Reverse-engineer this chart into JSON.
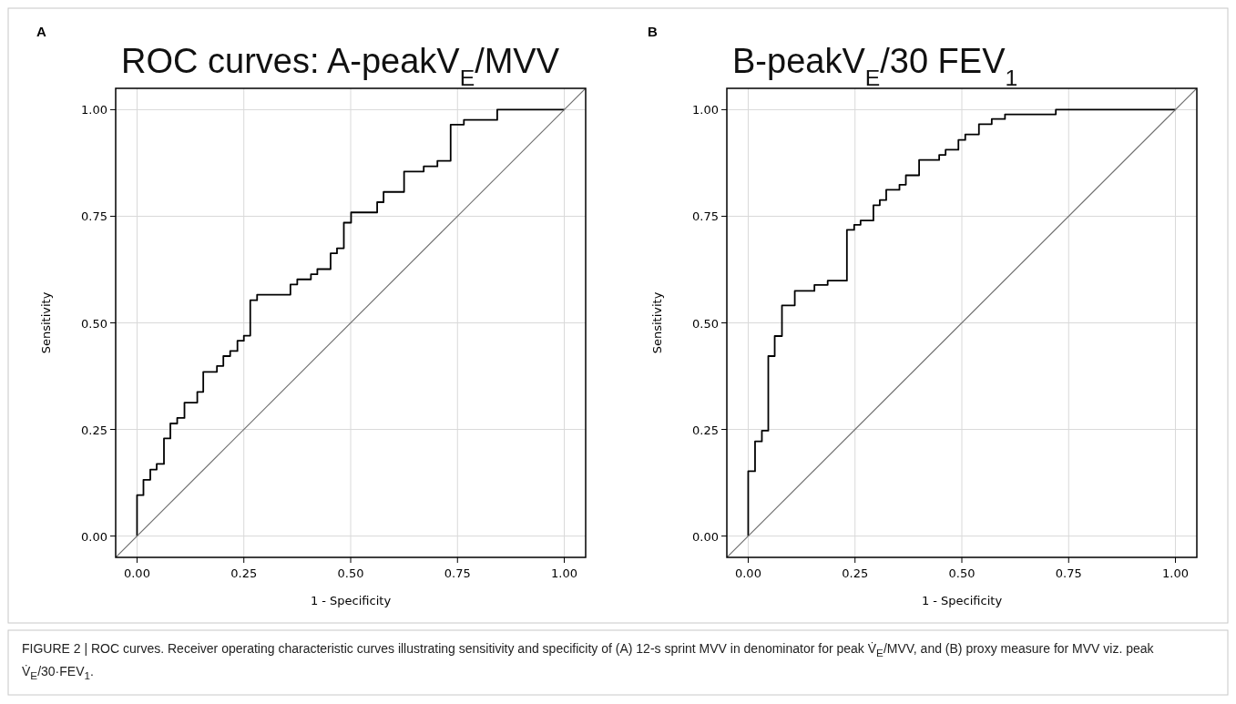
{
  "chart_data": [
    {
      "type": "step",
      "title": "ROC curves: A-peakV$_{E}$/MVV",
      "xlabel": "1 - Specificity",
      "ylabel": "Sensitivity",
      "xlim": [
        -0.05,
        1.05
      ],
      "ylim": [
        -0.05,
        1.05
      ],
      "xticks": [
        {
          "value": 0,
          "label": "0.00"
        },
        {
          "value": 0.25,
          "label": "0.25"
        },
        {
          "value": 0.5,
          "label": "0.50"
        },
        {
          "value": 0.75,
          "label": "0.75"
        },
        {
          "value": 1,
          "label": "1.00"
        }
      ],
      "yticks": [
        {
          "value": 0,
          "label": "0.00"
        },
        {
          "value": 0.25,
          "label": "0.25"
        },
        {
          "value": 0.5,
          "label": "0.50"
        },
        {
          "value": 0.75,
          "label": "0.75"
        },
        {
          "value": 1,
          "label": "1.00"
        }
      ],
      "grid": true,
      "annotations": [
        "A",
        "FIGURE 2 | ROC curves. Receiver operating characteristic curves illustrating sensitivity and specificity of (A) 12-s sprint MVV in denominator for peak V̇$_{E}$/MVV, and (B) proxy measure for MVV viz. peak V̇$_{E}$/30·FEV$_{1}$."
      ],
      "series": [
        {
          "color": "#000000",
          "x": [
            0,
            0,
            0.015,
            0.031,
            0.046,
            0.063,
            0.078,
            0.094,
            0.111,
            0.141,
            0.155,
            0.187,
            0.202,
            0.218,
            0.235,
            0.25,
            0.265,
            0.281,
            0.359,
            0.375,
            0.407,
            0.422,
            0.453,
            0.468,
            0.484,
            0.501,
            0.562,
            0.577,
            0.625,
            0.671,
            0.703,
            0.734,
            0.765,
            0.843,
            1
          ],
          "values": [
            0,
            0.096,
            0.132,
            0.156,
            0.169,
            0.229,
            0.264,
            0.277,
            0.313,
            0.338,
            0.385,
            0.399,
            0.422,
            0.434,
            0.458,
            0.47,
            0.553,
            0.566,
            0.59,
            0.602,
            0.614,
            0.626,
            0.663,
            0.675,
            0.735,
            0.759,
            0.783,
            0.807,
            0.855,
            0.867,
            0.88,
            0.965,
            0.976,
            1,
            1
          ]
        },
        {
          "type": "line",
          "color": "#707070",
          "x": [
            -0.05,
            1.05
          ],
          "values": [
            -0.05,
            1.05
          ]
        }
      ]
    },
    {
      "type": "step",
      "title": "B-peakV$_{E}$/30 FEV$_{1}$",
      "xlabel": "1 - Specificity",
      "ylabel": "Sensitivity",
      "xlim": [
        -0.05,
        1.05
      ],
      "ylim": [
        -0.05,
        1.05
      ],
      "xticks": [
        {
          "value": 0,
          "label": "0.00"
        },
        {
          "value": 0.25,
          "label": "0.25"
        },
        {
          "value": 0.5,
          "label": "0.50"
        },
        {
          "value": 0.75,
          "label": "0.75"
        },
        {
          "value": 1,
          "label": "1.00"
        }
      ],
      "yticks": [
        {
          "value": 0,
          "label": "0.00"
        },
        {
          "value": 0.25,
          "label": "0.25"
        },
        {
          "value": 0.5,
          "label": "0.50"
        },
        {
          "value": 0.75,
          "label": "0.75"
        },
        {
          "value": 1,
          "label": "1.00"
        }
      ],
      "grid": true,
      "annotations": [
        "B"
      ],
      "series": [
        {
          "color": "#000000",
          "x": [
            0,
            0,
            0.016,
            0.032,
            0.047,
            0.062,
            0.079,
            0.109,
            0.155,
            0.186,
            0.231,
            0.248,
            0.263,
            0.293,
            0.308,
            0.323,
            0.354,
            0.369,
            0.4,
            0.447,
            0.462,
            0.492,
            0.508,
            0.54,
            0.57,
            0.601,
            0.72,
            1
          ],
          "values": [
            0,
            0.152,
            0.222,
            0.247,
            0.422,
            0.469,
            0.541,
            0.575,
            0.589,
            0.599,
            0.718,
            0.73,
            0.74,
            0.776,
            0.788,
            0.812,
            0.824,
            0.846,
            0.882,
            0.894,
            0.906,
            0.929,
            0.942,
            0.966,
            0.978,
            0.989,
            1,
            1
          ]
        },
        {
          "type": "line",
          "color": "#707070",
          "x": [
            -0.05,
            1.05
          ],
          "values": [
            -0.05,
            1.05
          ]
        }
      ]
    }
  ]
}
